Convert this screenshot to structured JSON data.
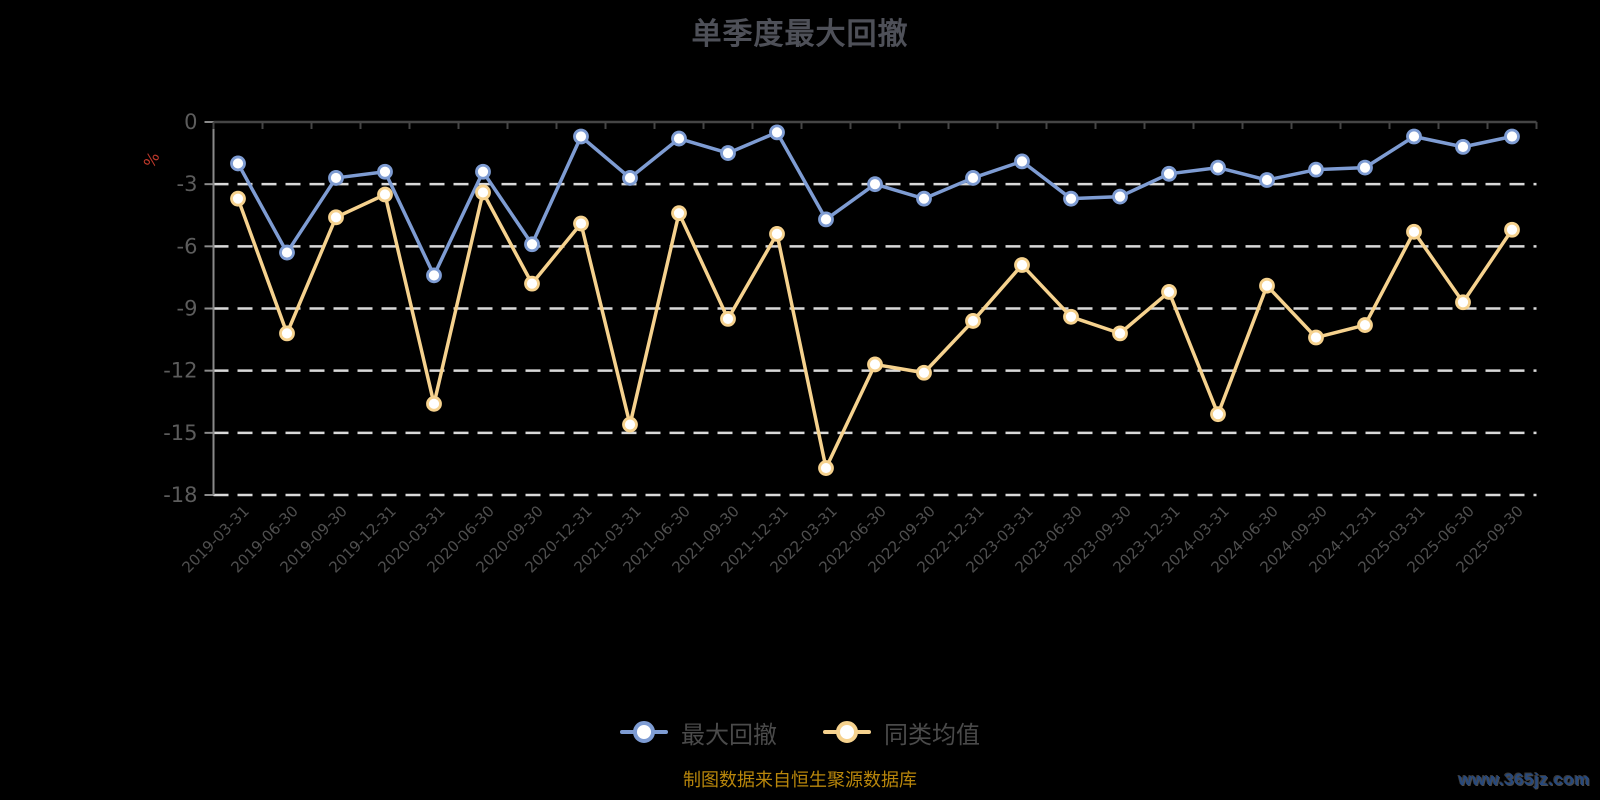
{
  "page": {
    "title": "单季度最大回撤",
    "caption": "制图数据来自恒生聚源数据库",
    "watermark": "www.365jz.com"
  },
  "y_axis": {
    "unit": "%",
    "tick_labels": [
      "0",
      "-3",
      "-6",
      "-9",
      "-12",
      "-15",
      "-18"
    ]
  },
  "legend": {
    "items": [
      {
        "label": "最大回撤",
        "color": "#7e9cd3"
      },
      {
        "label": "同类均值",
        "color": "#f6d28e"
      }
    ]
  },
  "colors": {
    "blue_series": "#7e9cd3",
    "yellow_series": "#f6d28e",
    "marker_fill": "#ffffff",
    "grid": "#d9d9d9",
    "axis_top": "#454545",
    "axis_left": "#8a8a8a",
    "y_label": "#5c5c5c",
    "x_label": "#4f4f4f",
    "unit": "#c0392b",
    "title": "#4e5058",
    "legend_text": "#4a4a4a",
    "caption": "#b8860b",
    "watermark": "#26497e",
    "background": "#000000"
  },
  "chart_data": {
    "type": "line",
    "title": "单季度最大回撤",
    "x": [
      "2019-03-31",
      "2019-06-30",
      "2019-09-30",
      "2019-12-31",
      "2020-03-31",
      "2020-06-30",
      "2020-09-30",
      "2020-12-31",
      "2021-03-31",
      "2021-06-30",
      "2021-09-30",
      "2021-12-31",
      "2022-03-31",
      "2022-06-30",
      "2022-09-30",
      "2022-12-31",
      "2023-03-31",
      "2023-06-30",
      "2023-09-30",
      "2023-12-31",
      "2024-03-31",
      "2024-06-30",
      "2024-09-30",
      "2024-12-31",
      "2025-03-31",
      "2025-06-30",
      "2025-09-30"
    ],
    "series": [
      {
        "name": "最大回撤",
        "color": "#7e9cd3",
        "values": [
          -2.0,
          -6.3,
          -2.7,
          -2.4,
          -7.4,
          -2.4,
          -5.9,
          -0.7,
          -2.7,
          -0.8,
          -1.5,
          -0.5,
          -4.7,
          -3.0,
          -3.7,
          -2.7,
          -1.9,
          -3.7,
          -3.6,
          -2.5,
          -2.2,
          -2.8,
          -2.3,
          -2.2,
          -0.7,
          -1.2,
          -0.7
        ]
      },
      {
        "name": "同类均值",
        "color": "#f6d28e",
        "values": [
          -3.7,
          -10.2,
          -4.6,
          -3.5,
          -13.6,
          -3.4,
          -7.8,
          -4.9,
          -14.6,
          -4.4,
          -9.5,
          -5.4,
          -16.7,
          -11.7,
          -12.1,
          -9.6,
          -6.9,
          -9.4,
          -10.2,
          -8.2,
          -14.1,
          -7.9,
          -10.4,
          -9.8,
          -5.3,
          -8.7,
          -5.2
        ]
      }
    ],
    "ylim": [
      -18,
      0
    ],
    "y_tick_step": 3,
    "ylabel": "%",
    "grid": "horizontal dashed",
    "legend_position": "bottom",
    "x_label_rotation": -45
  }
}
